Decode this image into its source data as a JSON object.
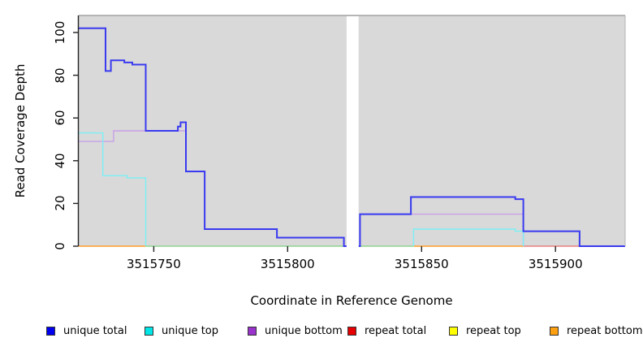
{
  "x_axis": {
    "label": "Coordinate in Reference Genome",
    "tick_labels": [
      "3515750",
      "3515800",
      "3515850",
      "3515900"
    ]
  },
  "y_axis": {
    "label": "Read Coverage Depth",
    "tick_labels": [
      "0",
      "20",
      "40",
      "60",
      "80",
      "100"
    ]
  },
  "legend": {
    "items": [
      {
        "label": "unique total",
        "color": "#0000ee"
      },
      {
        "label": "unique top",
        "color": "#00e6e6"
      },
      {
        "label": "unique bottom",
        "color": "#9933cc"
      },
      {
        "label": "repeat total",
        "color": "#e60000"
      },
      {
        "label": "repeat top",
        "color": "#ffff00"
      },
      {
        "label": "repeat bottom",
        "color": "#ffa012"
      }
    ]
  },
  "chart_data": {
    "type": "line",
    "step": true,
    "title": "",
    "xlabel": "Coordinate in Reference Genome",
    "ylabel": "Read Coverage Depth",
    "xlim": [
      3515722,
      3515926
    ],
    "ylim": [
      0,
      108
    ],
    "x_ticks": [
      3515750,
      3515800,
      3515850,
      3515900
    ],
    "y_ticks": [
      0,
      20,
      40,
      60,
      80,
      100
    ],
    "gap_x": [
      3515822,
      3515826.5
    ],
    "plot_bg": "#d9d9d9",
    "grid": false,
    "legend_position": "bottom",
    "series": [
      {
        "name": "repeat top",
        "line_color": "#7fce7f",
        "line_width": 1.3,
        "segments": [
          [
            [
              3515747,
              0
            ],
            [
              3515822,
              0
            ]
          ],
          [
            [
              3515826.5,
              0
            ],
            [
              3515847,
              0
            ]
          ]
        ]
      },
      {
        "name": "repeat total",
        "line_color": "#e86a6a",
        "line_width": 1.3,
        "segments": [
          [
            [
              3515888,
              0
            ],
            [
              3515926,
              0
            ]
          ]
        ]
      },
      {
        "name": "repeat bottom",
        "line_color": "#ff9e2c",
        "line_width": 1.5,
        "segments": [
          [
            [
              3515722,
              0
            ],
            [
              3515747,
              0
            ]
          ],
          [
            [
              3515847,
              0
            ],
            [
              3515888,
              0
            ]
          ]
        ]
      },
      {
        "name": "unique bottom",
        "line_color": "#c9a0e8",
        "line_width": 1.4,
        "segments": [
          [
            [
              3515722,
              49
            ],
            [
              3515735,
              49
            ],
            [
              3515735,
              54
            ],
            [
              3515762,
              54
            ],
            [
              3515762,
              35
            ],
            [
              3515769,
              35
            ],
            [
              3515769,
              8
            ],
            [
              3515796,
              8
            ],
            [
              3515796,
              4
            ],
            [
              3515821,
              4
            ],
            [
              3515821,
              0
            ],
            [
              3515822,
              0
            ]
          ],
          [
            [
              3515826.5,
              0
            ],
            [
              3515827,
              0
            ],
            [
              3515827,
              15
            ],
            [
              3515888,
              15
            ],
            [
              3515888,
              0
            ]
          ]
        ]
      },
      {
        "name": "unique top",
        "line_color": "#7af0f5",
        "line_width": 1.4,
        "segments": [
          [
            [
              3515722,
              53
            ],
            [
              3515731,
              53
            ],
            [
              3515731,
              33
            ],
            [
              3515740,
              33
            ],
            [
              3515740,
              32
            ],
            [
              3515747,
              32
            ],
            [
              3515747,
              0
            ]
          ],
          [
            [
              3515847,
              0
            ],
            [
              3515847,
              8
            ],
            [
              3515885,
              8
            ],
            [
              3515885,
              7
            ],
            [
              3515888,
              7
            ],
            [
              3515888,
              0
            ]
          ]
        ]
      },
      {
        "name": "unique total",
        "line_color": "#3a3af0",
        "line_width": 2,
        "segments": [
          [
            [
              3515722,
              102
            ],
            [
              3515732,
              102
            ],
            [
              3515732,
              82
            ],
            [
              3515734,
              82
            ],
            [
              3515734,
              87
            ],
            [
              3515739,
              87
            ],
            [
              3515739,
              86
            ],
            [
              3515742,
              86
            ],
            [
              3515742,
              85
            ],
            [
              3515747,
              85
            ],
            [
              3515747,
              54
            ],
            [
              3515759,
              54
            ],
            [
              3515759,
              56
            ],
            [
              3515760,
              56
            ],
            [
              3515760,
              58
            ],
            [
              3515762,
              58
            ],
            [
              3515762,
              35
            ],
            [
              3515769,
              35
            ],
            [
              3515769,
              8
            ],
            [
              3515796,
              8
            ],
            [
              3515796,
              4
            ],
            [
              3515821,
              4
            ],
            [
              3515821,
              0
            ],
            [
              3515822,
              0
            ]
          ],
          [
            [
              3515826.5,
              0
            ],
            [
              3515827,
              0
            ],
            [
              3515827,
              15
            ],
            [
              3515846,
              15
            ],
            [
              3515846,
              23
            ],
            [
              3515885,
              23
            ],
            [
              3515885,
              22
            ],
            [
              3515888,
              22
            ],
            [
              3515888,
              7
            ],
            [
              3515909,
              7
            ],
            [
              3515909,
              0
            ],
            [
              3515926,
              0
            ]
          ]
        ]
      }
    ]
  }
}
